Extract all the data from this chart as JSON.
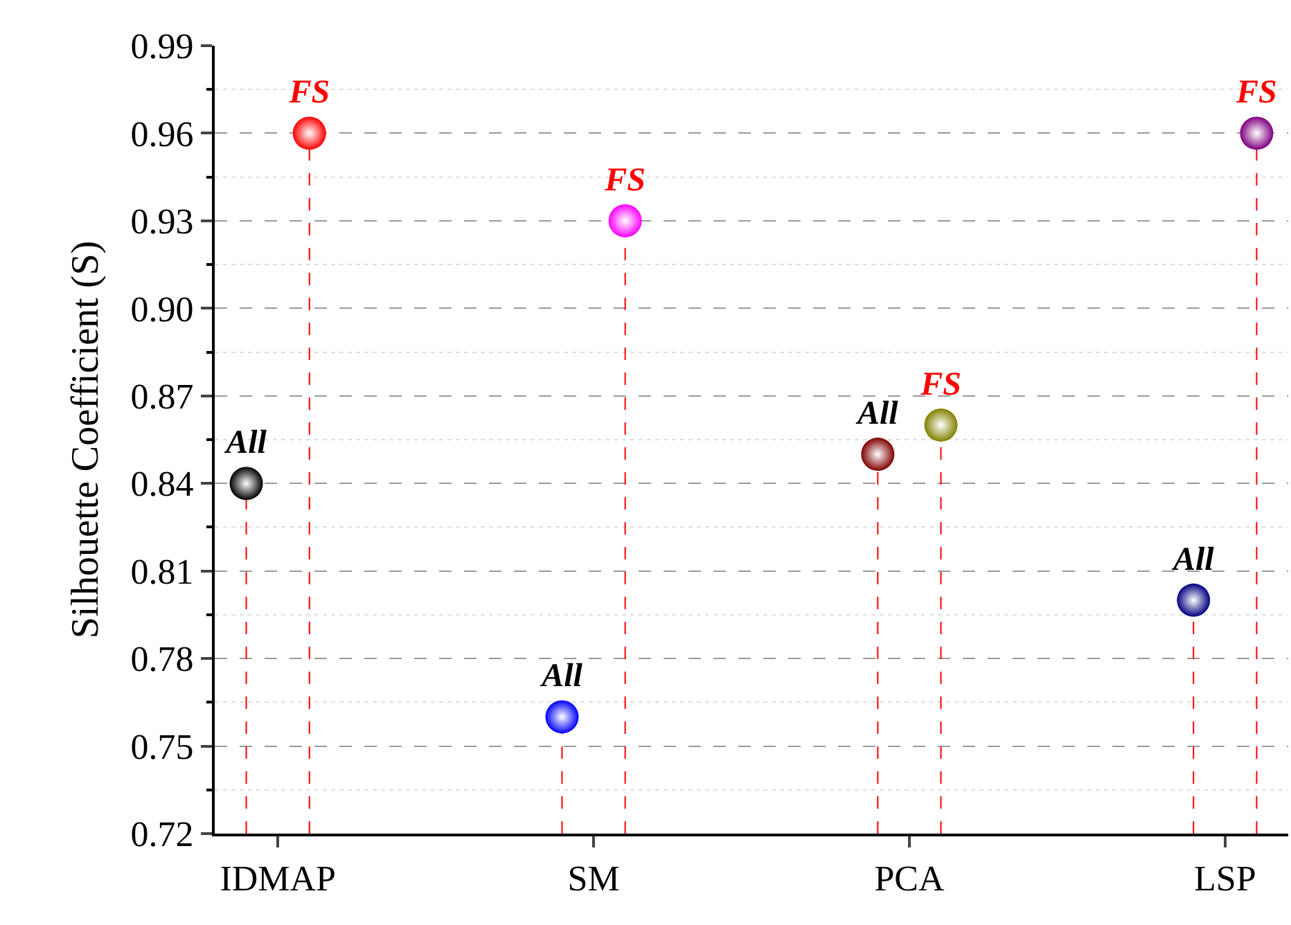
{
  "chart_data": {
    "type": "lollipop",
    "ylabel": "Silhouette Coefficient (S)",
    "categories": [
      "IDMAP",
      "SM",
      "PCA",
      "LSP"
    ],
    "series": [
      {
        "name": "All",
        "color": "#000000",
        "colors": [
          "#000000",
          "#0000ff",
          "#800000",
          "#000080"
        ],
        "values": [
          0.84,
          0.76,
          0.85,
          0.8
        ]
      },
      {
        "name": "FS",
        "color": "#ff0000",
        "colors": [
          "#ff0000",
          "#ff00ff",
          "#808000",
          "#800080"
        ],
        "values": [
          0.96,
          0.93,
          0.86,
          0.96
        ]
      }
    ],
    "ylim": [
      0.72,
      0.99
    ],
    "yticks": [
      0.72,
      0.75,
      0.78,
      0.81,
      0.84,
      0.87,
      {
        "value": 0.9,
        "label": "0.90"
      },
      0.93,
      0.96,
      0.99
    ],
    "grid": "y",
    "marker": "circle",
    "line_style": "dashed",
    "legend": false
  }
}
